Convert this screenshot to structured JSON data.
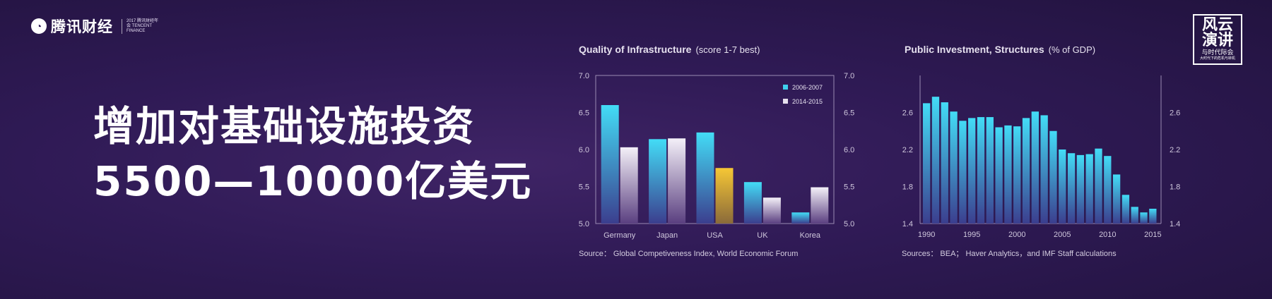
{
  "header": {
    "logo_text": "腾讯财经",
    "logo_sub": "2017 腾讯财经年会 TENCENT FINANCE",
    "badge_line1": "风云",
    "badge_line2": "演讲",
    "badge_line3": "与时代际会",
    "badge_line4": "大时代下的危机与转机"
  },
  "headline": {
    "line1": "增加对基础设施投资",
    "line2": "5500—10000亿美元"
  },
  "colors": {
    "cyan": "#3fd0ee",
    "white_bar": "#d9cfe6",
    "usa_highlight": "#f2c12e"
  },
  "chart_data": [
    {
      "type": "bar",
      "title": "Quality of Infrastructure",
      "subtitle": "(score 1-7 best)",
      "categories": [
        "Germany",
        "Japan",
        "USA",
        "UK",
        "Korea"
      ],
      "series": [
        {
          "name": "2006-2007",
          "values": [
            6.6,
            6.14,
            6.23,
            5.56,
            5.15
          ]
        },
        {
          "name": "2014-2015",
          "values": [
            6.03,
            6.15,
            5.75,
            5.35,
            5.49
          ]
        }
      ],
      "ylim": [
        5.0,
        7.0
      ],
      "yticks": [
        "5.0",
        "5.5",
        "6.0",
        "6.5",
        "7.0"
      ],
      "dual_y_axis": true,
      "legend": "top-right",
      "source": "Source： Global Competiveness Index, World Economic Forum"
    },
    {
      "type": "bar",
      "title": "Public Investment, Structures",
      "subtitle": "(% of GDP)",
      "x": [
        1990,
        1991,
        1992,
        1993,
        1994,
        1995,
        1996,
        1997,
        1998,
        1999,
        2000,
        2001,
        2002,
        2003,
        2004,
        2005,
        2006,
        2007,
        2008,
        2009,
        2010,
        2011,
        2012,
        2013,
        2014,
        2015
      ],
      "values": [
        2.7,
        2.77,
        2.71,
        2.61,
        2.51,
        2.54,
        2.55,
        2.55,
        2.44,
        2.46,
        2.45,
        2.54,
        2.61,
        2.57,
        2.4,
        2.2,
        2.16,
        2.14,
        2.15,
        2.21,
        2.13,
        1.93,
        1.71,
        1.58,
        1.52,
        1.56
      ],
      "xticks": [
        "1990",
        "1995",
        "2000",
        "2005",
        "2010",
        "2015"
      ],
      "ylim": [
        1.4,
        3.0
      ],
      "yticks": [
        "1.4",
        "1.8",
        "2.2",
        "2.6"
      ],
      "dual_y_axis": true,
      "source": "Sources： BEA； Haver Analytics，and IMF Staff calculations"
    }
  ]
}
